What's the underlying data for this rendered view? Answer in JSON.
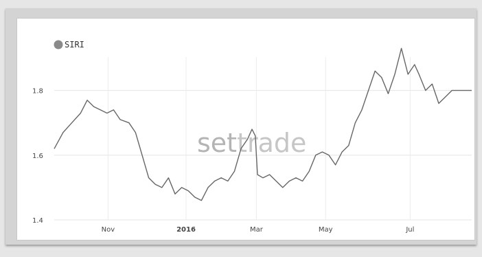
{
  "chart_data": {
    "type": "line",
    "title": "",
    "xlabel": "",
    "ylabel": "",
    "watermark": {
      "part1": "set",
      "part2": "trade"
    },
    "legend": {
      "position": "top-left",
      "label": "SIRI",
      "color": "#8a8a8a"
    },
    "grid": true,
    "xlim": [
      0,
      38
    ],
    "ylim": [
      1.4,
      1.95
    ],
    "y_ticks": [
      {
        "value": 1.4,
        "label": "1.4"
      },
      {
        "value": 1.6,
        "label": "1.6"
      },
      {
        "value": 1.8,
        "label": "1.8"
      }
    ],
    "x_ticks": [
      {
        "value": 4.9,
        "label": "Nov",
        "bold": false
      },
      {
        "value": 12,
        "label": "2016",
        "bold": true
      },
      {
        "value": 18.4,
        "label": "Mar",
        "bold": false
      },
      {
        "value": 24.7,
        "label": "May",
        "bold": false
      },
      {
        "value": 32.4,
        "label": "Jul",
        "bold": false
      }
    ],
    "series": [
      {
        "name": "SIRI",
        "color": "#666666",
        "x": [
          0,
          0.8,
          1.6,
          2.4,
          3.0,
          3.6,
          4.2,
          4.8,
          5.4,
          6.0,
          6.8,
          7.4,
          8.0,
          8.6,
          9.2,
          9.8,
          10.4,
          11.0,
          11.6,
          12.2,
          12.8,
          13.4,
          14.0,
          14.6,
          15.2,
          15.8,
          16.4,
          17.0,
          17.6,
          18.0,
          18.3,
          18.5,
          19.0,
          19.6,
          20.2,
          20.8,
          21.4,
          22.0,
          22.6,
          23.2,
          23.8,
          24.4,
          25.0,
          25.6,
          26.2,
          26.8,
          27.4,
          28.0,
          28.6,
          29.2,
          29.8,
          30.4,
          31.0,
          31.6,
          32.2,
          32.8,
          33.2,
          33.8,
          34.4,
          35.0,
          35.6,
          36.2,
          36.8,
          37.4,
          38.0
        ],
        "y": [
          1.62,
          1.67,
          1.7,
          1.73,
          1.77,
          1.75,
          1.74,
          1.73,
          1.74,
          1.71,
          1.7,
          1.67,
          1.6,
          1.53,
          1.51,
          1.5,
          1.53,
          1.48,
          1.5,
          1.49,
          1.47,
          1.46,
          1.5,
          1.52,
          1.53,
          1.52,
          1.55,
          1.62,
          1.65,
          1.68,
          1.66,
          1.54,
          1.53,
          1.54,
          1.52,
          1.5,
          1.52,
          1.53,
          1.52,
          1.55,
          1.6,
          1.61,
          1.6,
          1.57,
          1.61,
          1.63,
          1.7,
          1.74,
          1.8,
          1.86,
          1.84,
          1.79,
          1.85,
          1.93,
          1.85,
          1.88,
          1.85,
          1.8,
          1.82,
          1.76,
          1.78,
          1.8,
          1.8,
          1.8,
          1.8
        ]
      }
    ]
  }
}
